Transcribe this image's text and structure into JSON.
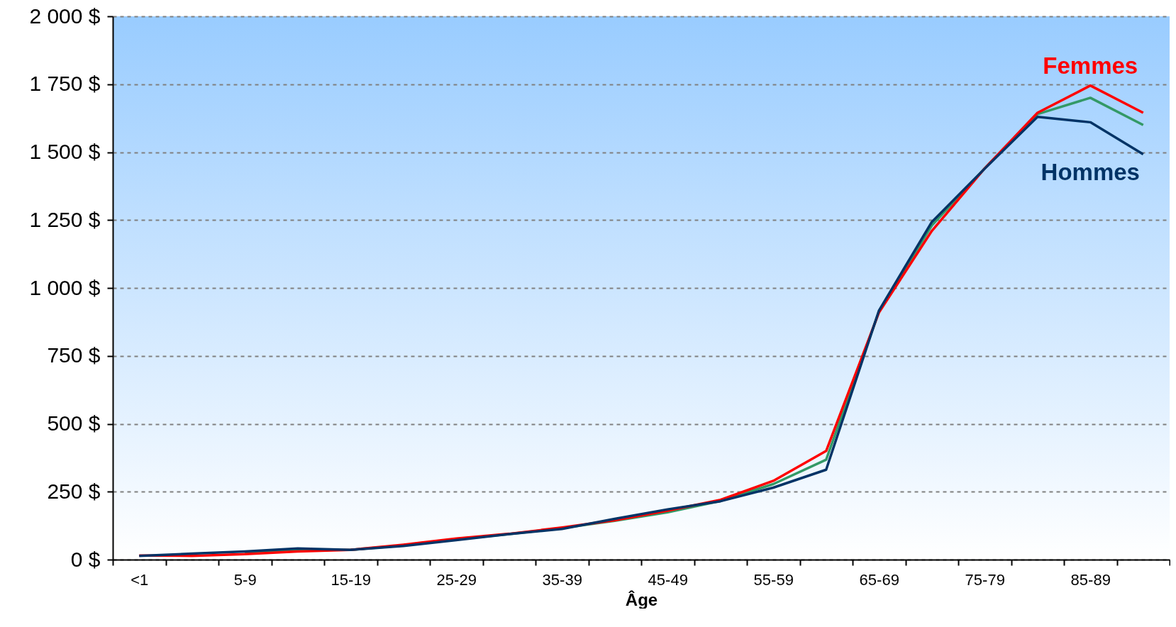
{
  "chart_data": {
    "type": "line",
    "xlabel": "Âge",
    "categories": [
      "<1",
      null,
      "5-9",
      null,
      "15-19",
      null,
      "25-29",
      null,
      "35-39",
      null,
      "45-49",
      null,
      "55-59",
      null,
      "65-69",
      null,
      "75-79",
      null,
      "85-89",
      null
    ],
    "series": [
      {
        "color": "#339966",
        "values": [
          null,
          null,
          25,
          35,
          36,
          52,
          75,
          94,
          116,
          143,
          174,
          216,
          278,
          368,
          913,
          1230,
          1440,
          1640,
          1700,
          1600
        ]
      },
      {
        "name": "Femmes",
        "color": "#ff0000",
        "values": [
          15,
          14,
          20,
          30,
          36,
          55,
          78,
          95,
          118,
          145,
          180,
          220,
          290,
          400,
          910,
          1210,
          1440,
          1645,
          1745,
          1645
        ]
      },
      {
        "name": "Hommes",
        "color": "#003366",
        "values": [
          14,
          22,
          30,
          41,
          36,
          50,
          72,
          94,
          113,
          150,
          185,
          215,
          265,
          331,
          917,
          1243,
          1439,
          1630,
          1610,
          1492
        ]
      }
    ],
    "ylim": [
      0,
      2000
    ],
    "yticks": [
      {
        "value": 0,
        "label": "0 $"
      },
      {
        "value": 250,
        "label": "250 $"
      },
      {
        "value": 500,
        "label": "500 $"
      },
      {
        "value": 750,
        "label": "750 $"
      },
      {
        "value": 1000,
        "label": "1 000 $"
      },
      {
        "value": 1250,
        "label": "1 250 $"
      },
      {
        "value": 1500,
        "label": "1 500 $"
      },
      {
        "value": 1750,
        "label": "1 750 $"
      },
      {
        "value": 2000,
        "label": "2 000 $"
      }
    ],
    "grid": "y"
  }
}
